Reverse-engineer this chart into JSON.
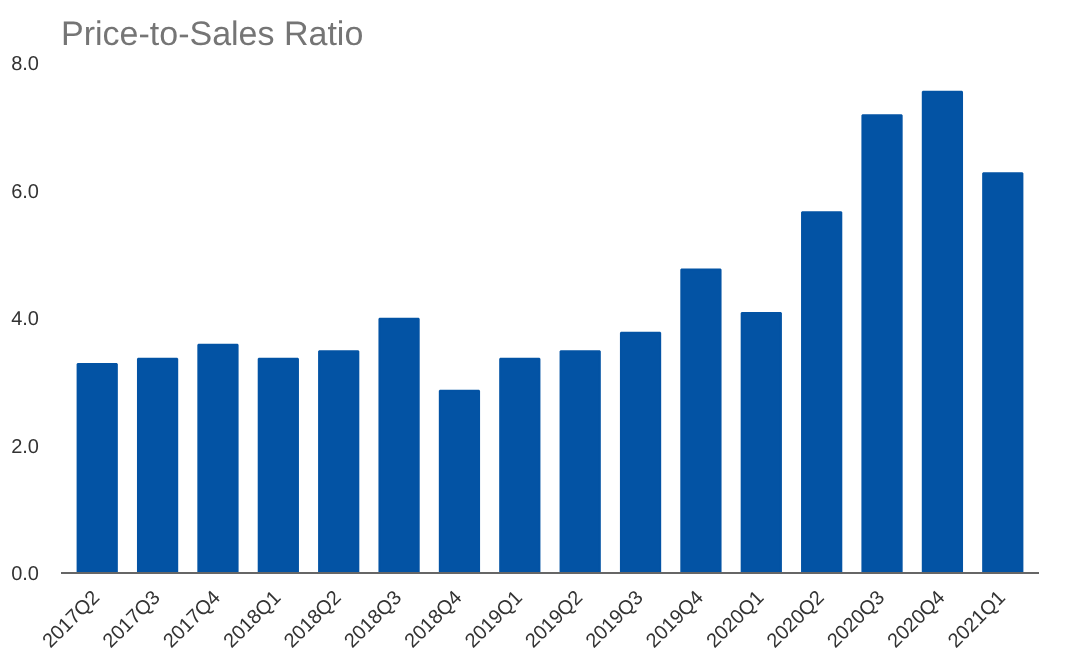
{
  "chart_data": {
    "type": "bar",
    "title": "Price-to-Sales Ratio",
    "categories": [
      "2017Q2",
      "2017Q3",
      "2017Q4",
      "2018Q1",
      "2018Q2",
      "2018Q3",
      "2018Q4",
      "2019Q1",
      "2019Q2",
      "2019Q3",
      "2019Q4",
      "2020Q1",
      "2020Q2",
      "2020Q3",
      "2020Q4",
      "2021Q1"
    ],
    "values": [
      3.28,
      3.36,
      3.58,
      3.36,
      3.48,
      3.99,
      2.86,
      3.36,
      3.48,
      3.77,
      4.76,
      4.08,
      5.66,
      7.18,
      7.55,
      6.27
    ],
    "color": "#0353a4",
    "ylim": [
      0,
      8
    ],
    "yticks": [
      {
        "value": 0,
        "label": "0.0"
      },
      {
        "value": 2,
        "label": "2.0"
      },
      {
        "value": 4,
        "label": "4.0"
      },
      {
        "value": 6,
        "label": "6.0"
      },
      {
        "value": 8,
        "label": "8.0"
      }
    ],
    "grid": false
  }
}
